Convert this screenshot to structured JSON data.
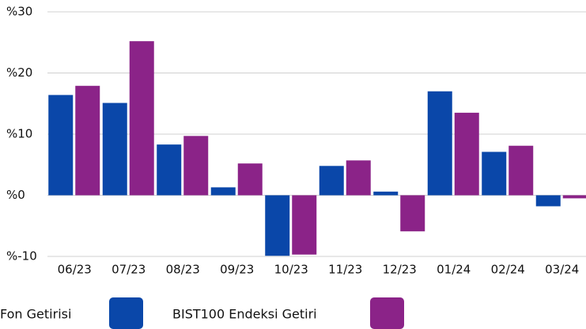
{
  "chart_data": {
    "type": "bar",
    "categories": [
      "06/23",
      "07/23",
      "08/23",
      "09/23",
      "10/23",
      "11/23",
      "12/23",
      "01/24",
      "02/24",
      "03/24"
    ],
    "series": [
      {
        "name": "Fon Getirisi",
        "color": "#0a47a9",
        "values": [
          16.4,
          15.1,
          8.3,
          1.3,
          -9.9,
          4.8,
          0.6,
          17.0,
          7.1,
          -1.8
        ]
      },
      {
        "name": "BIST100 Endeksi Getiri",
        "color": "#8b2388",
        "values": [
          17.9,
          25.2,
          9.7,
          5.2,
          -9.7,
          5.7,
          -5.9,
          13.5,
          8.1,
          -0.5
        ]
      }
    ],
    "ylim": [
      -10,
      30
    ],
    "yticks": [
      {
        "value": -10,
        "label": "%-10"
      },
      {
        "value": 0,
        "label": "%0"
      },
      {
        "value": 10,
        "label": "%10"
      },
      {
        "value": 20,
        "label": "%20"
      },
      {
        "value": 30,
        "label": "%30"
      }
    ],
    "grid": true
  }
}
